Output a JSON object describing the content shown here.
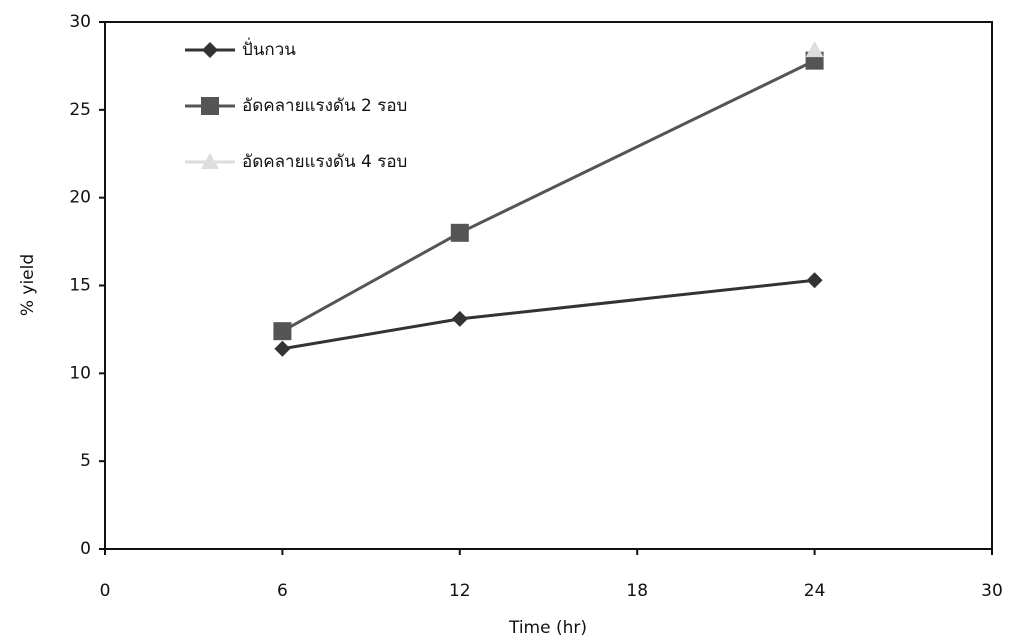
{
  "chart_data": {
    "type": "line",
    "x": [
      6,
      12,
      24
    ],
    "series": [
      {
        "name": "ปั่นกวน",
        "color": "#333333",
        "marker": "diamond",
        "values": [
          11.4,
          13.1,
          15.3
        ]
      },
      {
        "name": "อัดคลายแรงดัน 2 รอบ",
        "color": "#555555",
        "marker": "square",
        "values": [
          12.4,
          18.0,
          27.8
        ]
      },
      {
        "name": "อัดคลายแรงดัน 4 รอบ",
        "color": "#dddddd",
        "marker": "triangle",
        "values": [
          null,
          null,
          28.4
        ]
      }
    ],
    "xlim": [
      0,
      30
    ],
    "xticks": [
      0,
      6,
      12,
      18,
      24,
      30
    ],
    "ylim": [
      0,
      30
    ],
    "yticks": [
      0,
      5,
      10,
      15,
      20,
      25,
      30
    ],
    "xlabel": "Time (hr)",
    "ylabel": "% yield",
    "grid": false,
    "legend": "upper-left"
  }
}
